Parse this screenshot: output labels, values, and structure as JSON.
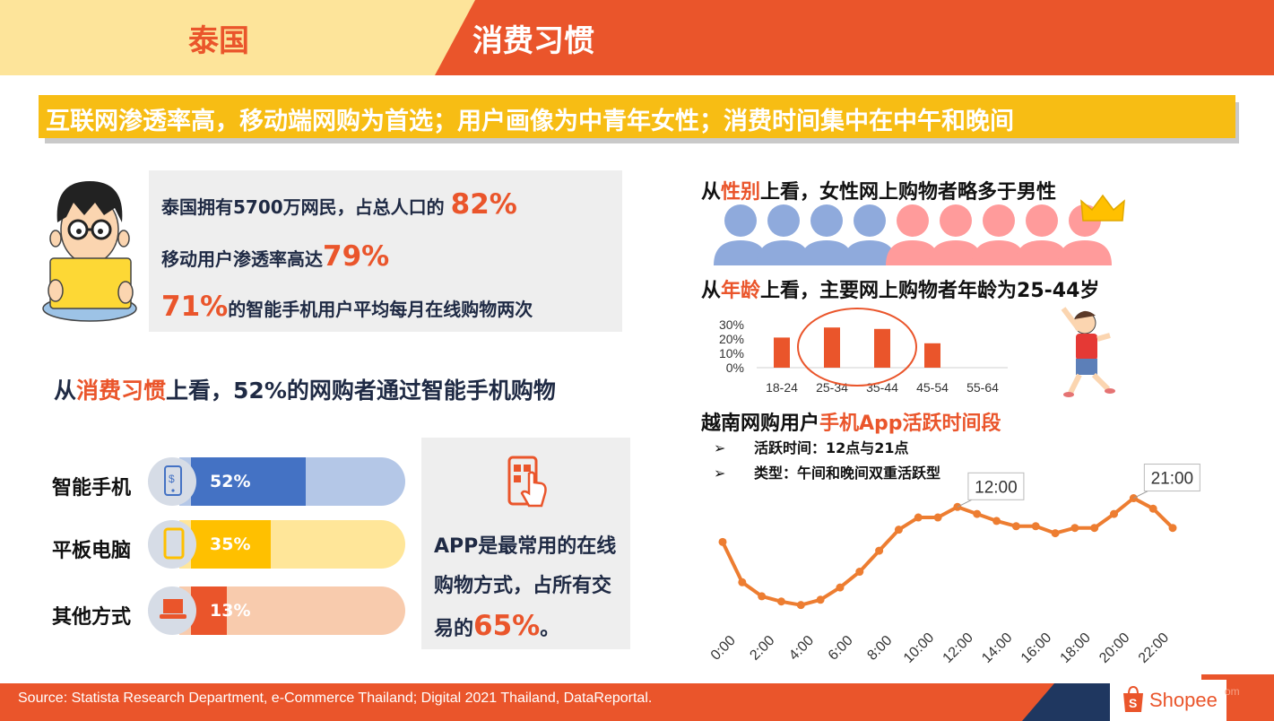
{
  "header": {
    "country": "泰国",
    "topic": "消费习惯"
  },
  "headline": "互联网渗透率高，移动端网购为首选；用户画像为中青年女性；消费时间集中在中午和晚间",
  "stats": {
    "line1_text": "泰国拥有5700万网民，占总人口的",
    "line1_value": "82%",
    "line2_text": "移动用户渗透率高达",
    "line2_value": "79%",
    "line3_value": "71%",
    "line3_text": "的智能手机用户平均每月在线购物两次"
  },
  "consume": {
    "prefix": "从",
    "highlight": "消费习惯",
    "suffix": "上看，52%的网购者通过智能手机购物"
  },
  "devices": [
    {
      "label": "智能手机",
      "value": 52,
      "pct_label": "52%",
      "fill": "#4472c4",
      "track": "#b4c7e7",
      "icon": "smartphone-icon"
    },
    {
      "label": "平板电脑",
      "value": 35,
      "pct_label": "35%",
      "fill": "#ffc000",
      "track": "#ffe699",
      "icon": "tablet-icon"
    },
    {
      "label": "其他方式",
      "value": 13,
      "pct_label": "13%",
      "fill": "#ea552b",
      "track": "#f8cbad",
      "icon": "laptop-icon"
    }
  ],
  "app": {
    "text": "APP是最常用的在线购物方式，占所有交易的",
    "value": "65%",
    "suffix": "。",
    "icon": "tap-phone-icon"
  },
  "gender": {
    "prefix": "从",
    "highlight": "性别",
    "suffix": "上看，女性网上购物者略多于男性",
    "male_color": "#8faadc",
    "female_color": "#ff9b9b",
    "icon": "crown-icon"
  },
  "age": {
    "prefix": "从",
    "highlight": "年龄",
    "suffix": "上看，主要网上购物者年龄为25-44岁"
  },
  "active": {
    "title_prefix": "越南网购用户",
    "title_highlight": "手机App活跃时间段",
    "bullets": [
      "活跃时间：12点与21点",
      "类型：午间和晚间双重活跃型"
    ],
    "bullet_marker": "➢"
  },
  "chart_data": [
    {
      "type": "bar",
      "categories": [
        "18-24",
        "25-34",
        "35-44",
        "45-54",
        "55-64"
      ],
      "values": [
        21,
        28,
        27,
        17,
        0
      ],
      "yticks": [
        "30%",
        "20%",
        "10%",
        "0%"
      ],
      "ylim": [
        0,
        35
      ],
      "color": "#ea552b",
      "highlighted_categories": [
        "25-34",
        "35-44"
      ]
    },
    {
      "type": "line",
      "x": [
        "0:00",
        "1:00",
        "2:00",
        "3:00",
        "4:00",
        "5:00",
        "6:00",
        "7:00",
        "8:00",
        "9:00",
        "10:00",
        "11:00",
        "12:00",
        "13:00",
        "14:00",
        "15:00",
        "16:00",
        "17:00",
        "18:00",
        "19:00",
        "20:00",
        "21:00",
        "22:00",
        "23:00"
      ],
      "xticks": [
        "0:00",
        "2:00",
        "4:00",
        "6:00",
        "8:00",
        "10:00",
        "12:00",
        "14:00",
        "16:00",
        "18:00",
        "20:00",
        "22:00"
      ],
      "values": [
        60,
        37,
        29,
        26,
        24,
        27,
        34,
        43,
        55,
        67,
        74,
        74,
        80,
        76,
        72,
        69,
        69,
        65,
        68,
        68,
        76,
        85,
        79,
        68
      ],
      "ylim": [
        10,
        95
      ],
      "color": "#ed7d31",
      "annotations": [
        {
          "x": "12:00",
          "label": "12:00"
        },
        {
          "x": "21:00",
          "label": "21:00"
        }
      ]
    }
  ],
  "footer": {
    "source": "Source: Statista Research Department, e-Commerce Thailand; Digital 2021 Thailand, DataReportal.",
    "brand": "Shopee",
    "url_fragment": "om"
  }
}
